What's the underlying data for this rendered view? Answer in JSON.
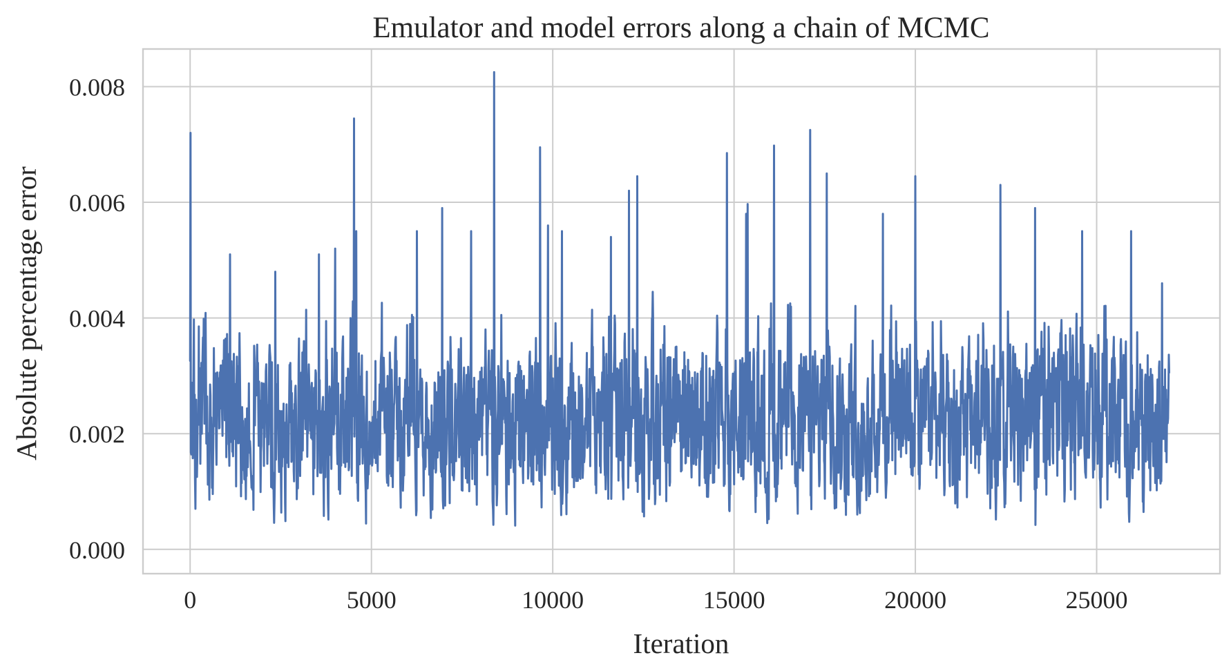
{
  "chart_data": {
    "type": "line",
    "title": "Emulator and model errors along a chain of MCMC",
    "xlabel": "Iteration",
    "ylabel": "Absolute percentage error",
    "xlim": [
      -1300,
      28400
    ],
    "ylim": [
      -0.00042,
      0.00865
    ],
    "x_ticks": [
      0,
      5000,
      10000,
      15000,
      20000,
      25000
    ],
    "x_tick_labels": [
      "0",
      "5000",
      "10000",
      "15000",
      "20000",
      "25000"
    ],
    "y_ticks": [
      0.0,
      0.002,
      0.004,
      0.006,
      0.008
    ],
    "y_tick_labels": [
      "0.000",
      "0.002",
      "0.004",
      "0.006",
      "0.008"
    ],
    "grid": true,
    "legend": "none",
    "colors": {
      "line": "#4c72b0",
      "grid": "#cccccc",
      "text": "#262626"
    },
    "series": [
      {
        "x_start": 0,
        "x_end": 27000,
        "n_points": 2600,
        "typical_range": [
          0.0005,
          0.004
        ],
        "mean_level": 0.0024,
        "peaks": [
          {
            "x": 10,
            "y": 0.0072
          },
          {
            "x": 1100,
            "y": 0.0051
          },
          {
            "x": 2350,
            "y": 0.0048
          },
          {
            "x": 3550,
            "y": 0.0051
          },
          {
            "x": 4000,
            "y": 0.0052
          },
          {
            "x": 4520,
            "y": 0.00745
          },
          {
            "x": 4580,
            "y": 0.0055
          },
          {
            "x": 6250,
            "y": 0.0055
          },
          {
            "x": 6950,
            "y": 0.0059
          },
          {
            "x": 7750,
            "y": 0.0055
          },
          {
            "x": 8380,
            "y": 0.00825
          },
          {
            "x": 9650,
            "y": 0.00695
          },
          {
            "x": 9870,
            "y": 0.0056
          },
          {
            "x": 10250,
            "y": 0.0055
          },
          {
            "x": 11600,
            "y": 0.0054
          },
          {
            "x": 12100,
            "y": 0.0062
          },
          {
            "x": 12330,
            "y": 0.00645
          },
          {
            "x": 14800,
            "y": 0.00685
          },
          {
            "x": 15330,
            "y": 0.0058
          },
          {
            "x": 15380,
            "y": 0.00597
          },
          {
            "x": 16100,
            "y": 0.00698
          },
          {
            "x": 17100,
            "y": 0.00725
          },
          {
            "x": 17560,
            "y": 0.0065
          },
          {
            "x": 19100,
            "y": 0.0058
          },
          {
            "x": 20000,
            "y": 0.00645
          },
          {
            "x": 22350,
            "y": 0.0063
          },
          {
            "x": 23300,
            "y": 0.0059
          },
          {
            "x": 24600,
            "y": 0.0055
          },
          {
            "x": 25950,
            "y": 0.0055
          },
          {
            "x": 26800,
            "y": 0.0046
          }
        ]
      }
    ]
  }
}
